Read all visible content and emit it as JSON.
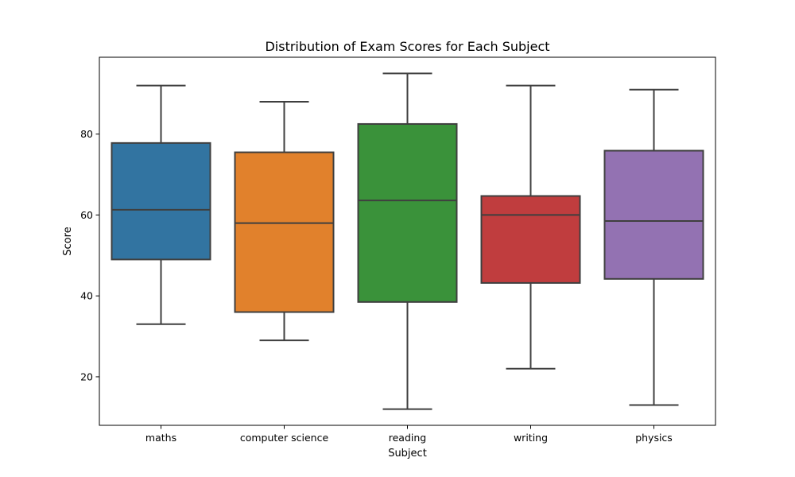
{
  "chart_data": {
    "type": "boxplot",
    "title": "Distribution of Exam Scores for Each Subject",
    "xlabel": "Subject",
    "ylabel": "Score",
    "ylim": [
      8,
      99
    ],
    "yticks": [
      20,
      40,
      60,
      80
    ],
    "legend": "none",
    "grid": false,
    "categories": [
      "maths",
      "computer science",
      "reading",
      "writing",
      "physics"
    ],
    "boxes": [
      {
        "category": "maths",
        "whisker_low": 33,
        "q1": 49,
        "median": 61.3,
        "q3": 77.8,
        "whisker_high": 92,
        "color": "#3274a1"
      },
      {
        "category": "computer science",
        "whisker_low": 29,
        "q1": 36,
        "median": 58,
        "q3": 75.5,
        "whisker_high": 88,
        "color": "#e1812c"
      },
      {
        "category": "reading",
        "whisker_low": 12,
        "q1": 38.5,
        "median": 63.6,
        "q3": 82.5,
        "whisker_high": 95,
        "color": "#3a923a"
      },
      {
        "category": "writing",
        "whisker_low": 22,
        "q1": 43.2,
        "median": 60,
        "q3": 64.7,
        "whisker_high": 92,
        "color": "#c03d3e"
      },
      {
        "category": "physics",
        "whisker_low": 13,
        "q1": 44.2,
        "median": 58.5,
        "q3": 75.9,
        "whisker_high": 91,
        "color": "#9372b2"
      }
    ],
    "line_color": "#3f3f3f"
  }
}
